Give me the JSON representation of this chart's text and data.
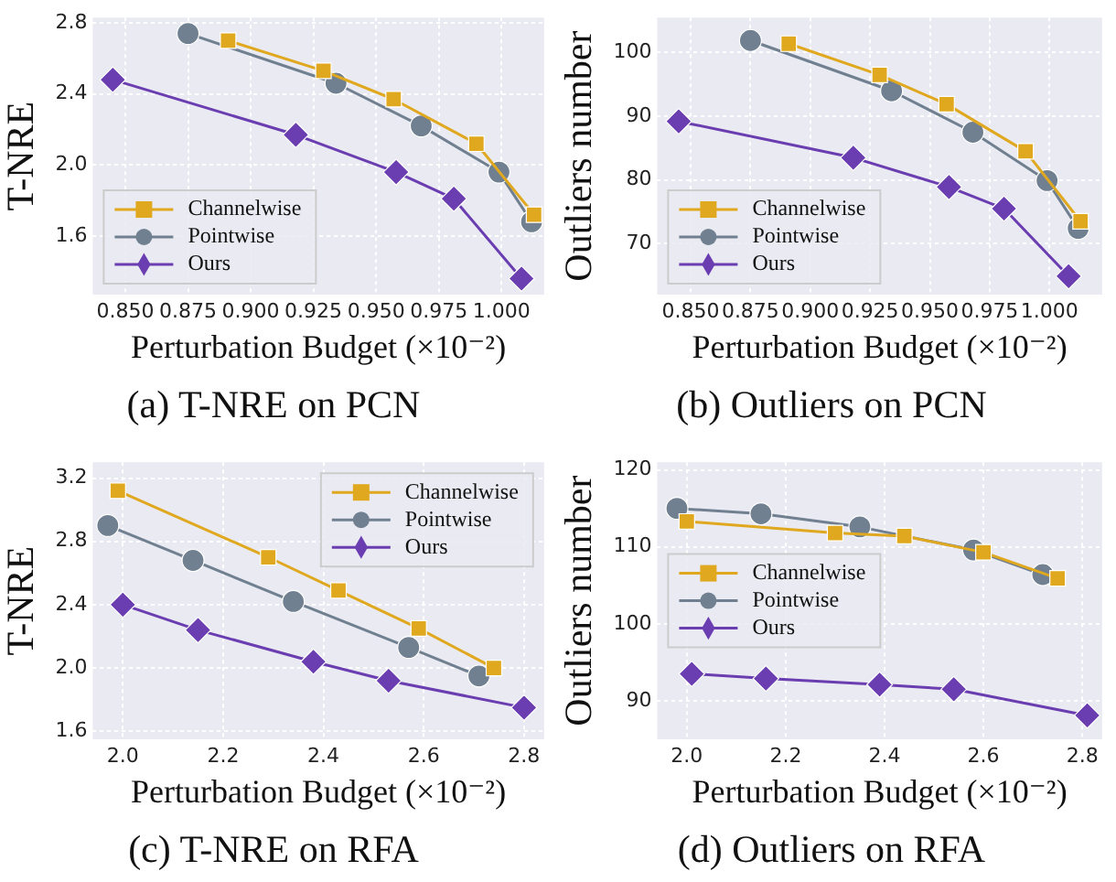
{
  "chart_data": [
    {
      "type": "line",
      "title": "(a) T-NRE on PCN",
      "xlabel": "Perturbation Budget (×10⁻²)",
      "ylabel": "T-NRE",
      "xlim": [
        0.837,
        1.017
      ],
      "xticks": [
        {
          "value": 0.85,
          "label": "0.850"
        },
        {
          "value": 0.875,
          "label": "0.875"
        },
        {
          "value": 0.9,
          "label": "0.900"
        },
        {
          "value": 0.925,
          "label": "0.925"
        },
        {
          "value": 0.95,
          "label": "0.950"
        },
        {
          "value": 0.975,
          "label": "0.975"
        },
        {
          "value": 1.0,
          "label": "1.000"
        }
      ],
      "ylim": [
        1.27,
        2.83
      ],
      "yticks": [
        {
          "value": 1.6,
          "label": "1.6"
        },
        {
          "value": 2.0,
          "label": "2.0"
        },
        {
          "value": 2.4,
          "label": "2.4"
        },
        {
          "value": 2.8,
          "label": "2.8"
        }
      ],
      "grid": true,
      "legend": "bottom left",
      "series": [
        {
          "name": "Channelwise",
          "color": "#e0a81f",
          "marker": "square",
          "x": [
            0.891,
            0.929,
            0.957,
            0.99,
            1.013
          ],
          "values": [
            2.7,
            2.53,
            2.37,
            2.12,
            1.72
          ]
        },
        {
          "name": "Pointwise",
          "color": "#708090",
          "marker": "circle",
          "x": [
            0.875,
            0.934,
            0.968,
            0.999,
            1.012
          ],
          "values": [
            2.74,
            2.46,
            2.22,
            1.96,
            1.68
          ]
        },
        {
          "name": "Ours",
          "color": "#6a3db0",
          "marker": "diamond",
          "x": [
            0.845,
            0.918,
            0.958,
            0.981,
            1.008
          ],
          "values": [
            2.48,
            2.17,
            1.96,
            1.81,
            1.36
          ]
        }
      ]
    },
    {
      "type": "line",
      "title": "(b) Outliers on PCN",
      "xlabel": "Perturbation Budget (×10⁻²)",
      "ylabel": "Outliers number",
      "xlim": [
        0.836,
        1.022
      ],
      "xticks": [
        {
          "value": 0.85,
          "label": "0.850"
        },
        {
          "value": 0.875,
          "label": "0.875"
        },
        {
          "value": 0.9,
          "label": "0.900"
        },
        {
          "value": 0.925,
          "label": "0.925"
        },
        {
          "value": 0.95,
          "label": "0.950"
        },
        {
          "value": 0.975,
          "label": "0.975"
        },
        {
          "value": 1.0,
          "label": "1.000"
        }
      ],
      "ylim": [
        62,
        105.5
      ],
      "yticks": [
        70,
        80,
        90,
        100
      ],
      "grid": true,
      "legend": "bottom left",
      "series": [
        {
          "name": "Channelwise",
          "color": "#e0a81f",
          "marker": "square",
          "x": [
            0.891,
            0.929,
            0.957,
            0.99,
            1.013
          ],
          "values": [
            101.4,
            96.5,
            91.9,
            84.5,
            73.5
          ]
        },
        {
          "name": "Pointwise",
          "color": "#708090",
          "marker": "circle",
          "x": [
            0.875,
            0.934,
            0.968,
            0.999,
            1.012
          ],
          "values": [
            101.9,
            94.0,
            87.5,
            79.9,
            72.4
          ]
        },
        {
          "name": "Ours",
          "color": "#6a3db0",
          "marker": "diamond",
          "x": [
            0.845,
            0.918,
            0.958,
            0.981,
            1.008
          ],
          "values": [
            89.2,
            83.5,
            78.9,
            75.5,
            64.9
          ]
        }
      ]
    },
    {
      "type": "line",
      "title": "(c) T-NRE on RFA",
      "xlabel": "Perturbation Budget (×10⁻²)",
      "ylabel": "T-NRE",
      "xlim": [
        1.94,
        2.84
      ],
      "xticks": [
        {
          "value": 2.0,
          "label": "2.0"
        },
        {
          "value": 2.2,
          "label": "2.2"
        },
        {
          "value": 2.4,
          "label": "2.4"
        },
        {
          "value": 2.6,
          "label": "2.6"
        },
        {
          "value": 2.8,
          "label": "2.8"
        }
      ],
      "ylim": [
        1.55,
        3.3
      ],
      "yticks": [
        {
          "value": 1.6,
          "label": "1.6"
        },
        {
          "value": 2.0,
          "label": "2.0"
        },
        {
          "value": 2.4,
          "label": "2.4"
        },
        {
          "value": 2.8,
          "label": "2.8"
        },
        {
          "value": 3.2,
          "label": "3.2"
        }
      ],
      "grid": true,
      "legend": "top right",
      "series": [
        {
          "name": "Channelwise",
          "color": "#e0a81f",
          "marker": "square",
          "x": [
            1.99,
            2.29,
            2.43,
            2.59,
            2.74
          ],
          "values": [
            3.12,
            2.7,
            2.49,
            2.25,
            2.0
          ]
        },
        {
          "name": "Pointwise",
          "color": "#708090",
          "marker": "circle",
          "x": [
            1.97,
            2.14,
            2.34,
            2.57,
            2.71
          ],
          "values": [
            2.9,
            2.68,
            2.42,
            2.13,
            1.95
          ]
        },
        {
          "name": "Ours",
          "color": "#6a3db0",
          "marker": "diamond",
          "x": [
            2.0,
            2.15,
            2.38,
            2.53,
            2.8
          ],
          "values": [
            2.4,
            2.24,
            2.04,
            1.92,
            1.75
          ]
        }
      ]
    },
    {
      "type": "line",
      "title": "(d) Outliers on RFA",
      "xlabel": "Perturbation Budget (×10⁻²)",
      "ylabel": "Outliers number",
      "xlim": [
        1.94,
        2.84
      ],
      "xticks": [
        {
          "value": 2.0,
          "label": "2.0"
        },
        {
          "value": 2.2,
          "label": "2.2"
        },
        {
          "value": 2.4,
          "label": "2.4"
        },
        {
          "value": 2.6,
          "label": "2.6"
        },
        {
          "value": 2.8,
          "label": "2.8"
        }
      ],
      "ylim": [
        85,
        121
      ],
      "yticks": [
        90,
        100,
        110,
        120
      ],
      "grid": true,
      "legend": "left",
      "series": [
        {
          "name": "Channelwise",
          "color": "#e0a81f",
          "marker": "square",
          "x": [
            2.0,
            2.3,
            2.44,
            2.6,
            2.75
          ],
          "values": [
            113.3,
            111.8,
            111.4,
            109.3,
            105.9
          ]
        },
        {
          "name": "Pointwise",
          "color": "#708090",
          "marker": "circle",
          "x": [
            1.98,
            2.15,
            2.35,
            2.58,
            2.72
          ],
          "values": [
            115.0,
            114.3,
            112.6,
            109.6,
            106.4
          ]
        },
        {
          "name": "Ours",
          "color": "#6a3db0",
          "marker": "diamond",
          "x": [
            2.01,
            2.16,
            2.39,
            2.54,
            2.81
          ],
          "values": [
            93.5,
            92.9,
            92.1,
            91.5,
            88.1
          ]
        }
      ]
    }
  ]
}
